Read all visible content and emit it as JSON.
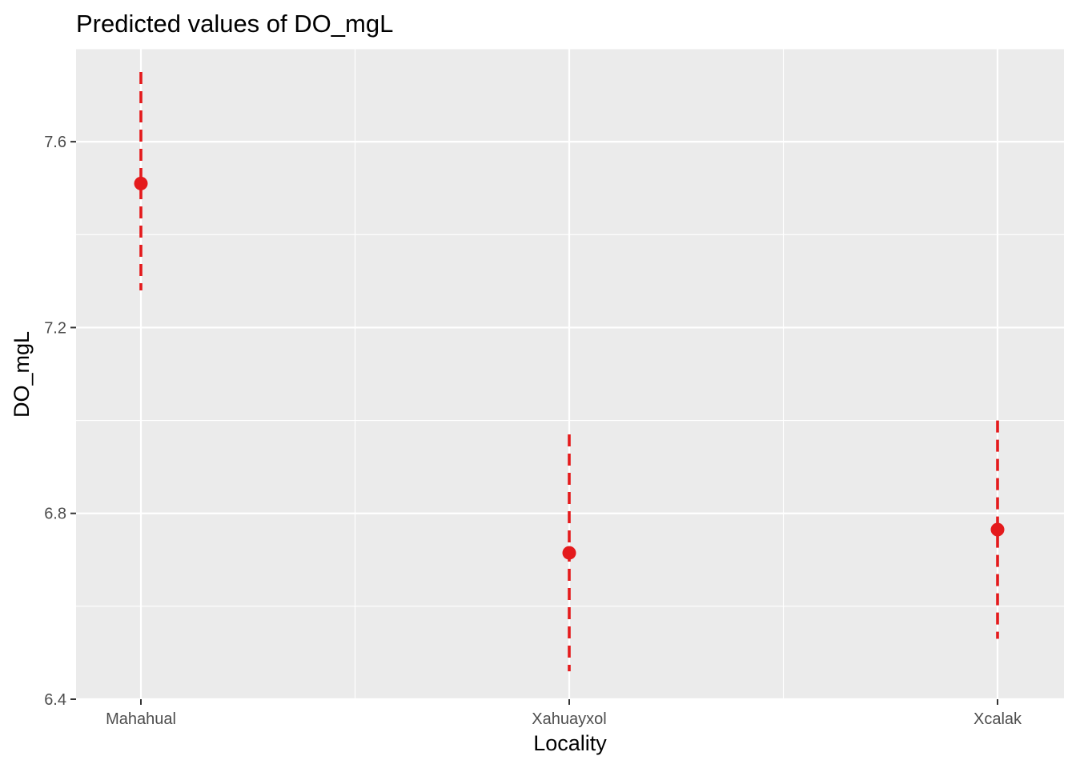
{
  "chart_data": {
    "type": "scatter",
    "title": "Predicted values of DO_mgL",
    "xlabel": "Locality",
    "ylabel": "DO_mgL",
    "categories": [
      "Mahahual",
      "Xahuayxol",
      "Xcalak"
    ],
    "series": [
      {
        "values": [
          7.51,
          6.715,
          6.765
        ],
        "ci_low": [
          7.28,
          6.46,
          6.53
        ],
        "ci_high": [
          7.75,
          6.97,
          7.0
        ]
      }
    ],
    "ylim": [
      6.4,
      7.8
    ],
    "yticks": [
      "6.4",
      "6.8",
      "7.2",
      "7.6"
    ],
    "grid": true,
    "legend": "none",
    "colors": {
      "point": "#e41a1c",
      "panel": "#ebebeb",
      "grid": "#ffffff",
      "tick_text": "#4d4d4d"
    }
  }
}
